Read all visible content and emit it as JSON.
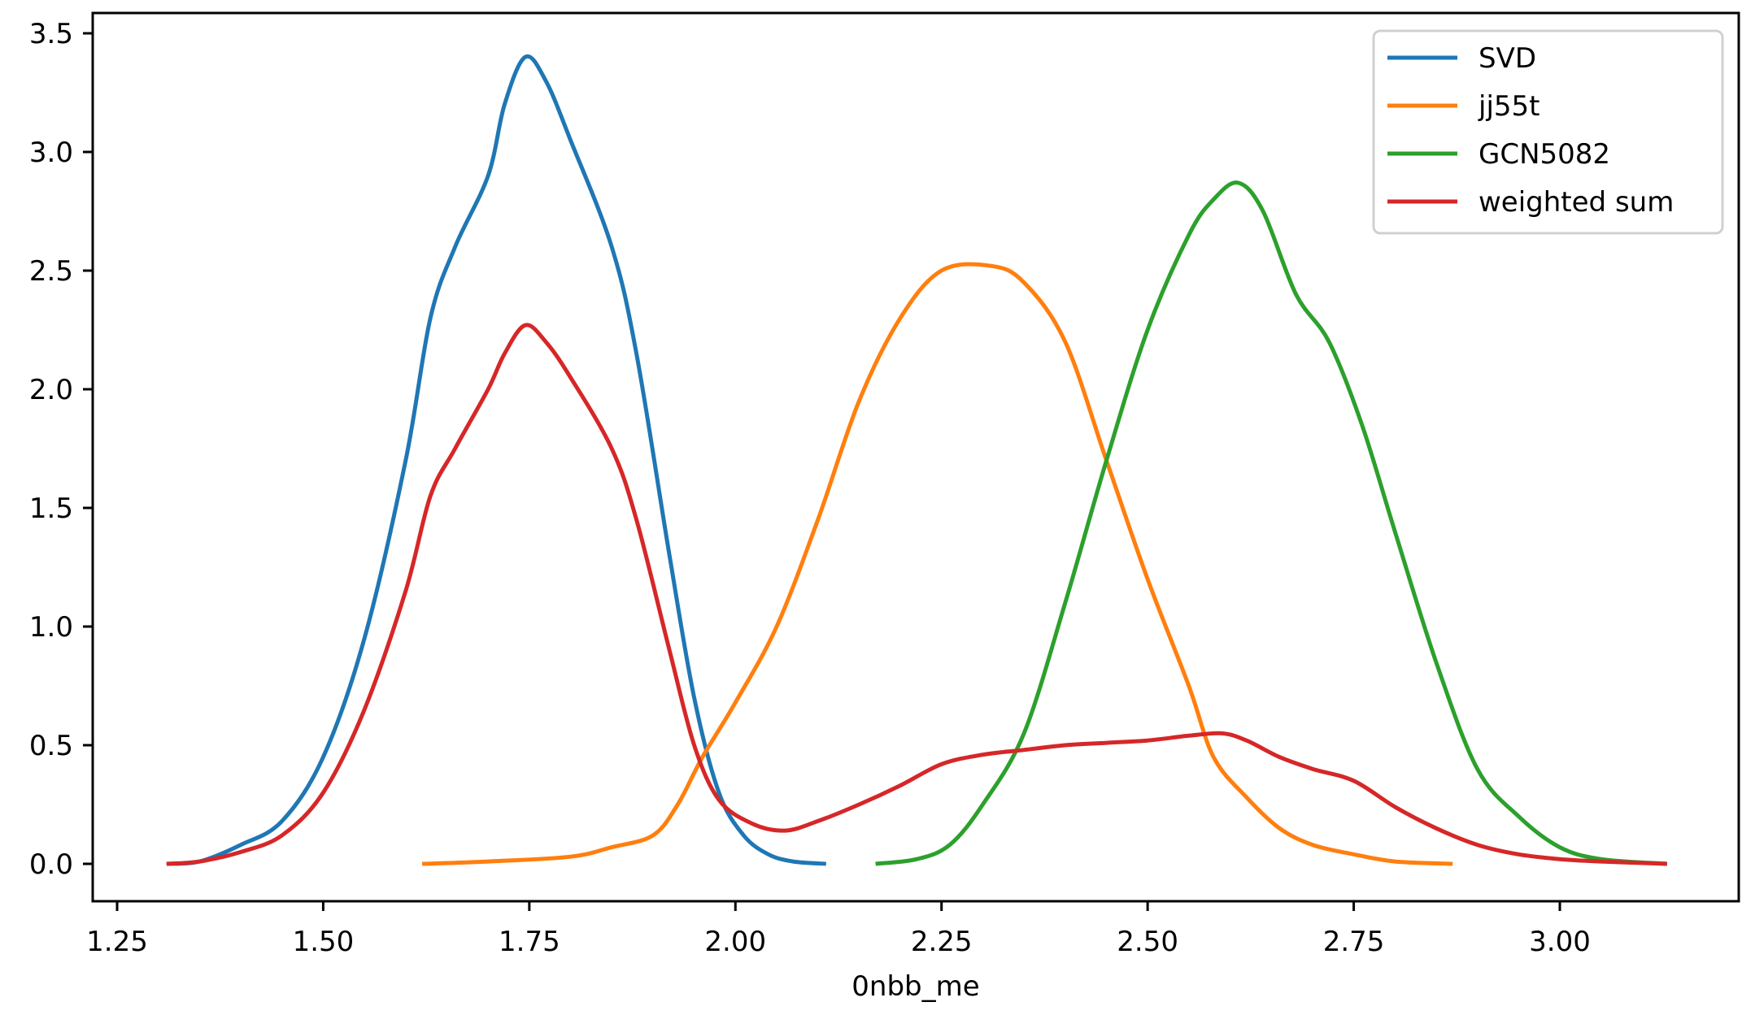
{
  "chart_data": {
    "type": "line",
    "title": "",
    "xlabel": "0nbb_me",
    "ylabel": "",
    "xlim": [
      1.22,
      3.22
    ],
    "ylim": [
      -0.17,
      3.6
    ],
    "xticks": [
      "1.25",
      "1.50",
      "1.75",
      "2.00",
      "2.25",
      "2.50",
      "2.75",
      "3.00"
    ],
    "yticks": [
      "0.0",
      "0.5",
      "1.0",
      "1.5",
      "2.0",
      "2.5",
      "3.0",
      "3.5"
    ],
    "grid": false,
    "legend_position": "upper right",
    "series": [
      {
        "name": "SVD",
        "color": "#1f77b4",
        "x": [
          1.31,
          1.35,
          1.4,
          1.45,
          1.5,
          1.55,
          1.6,
          1.63,
          1.66,
          1.7,
          1.72,
          1.745,
          1.77,
          1.8,
          1.85,
          1.88,
          1.92,
          1.95,
          1.98,
          2.01,
          2.04,
          2.07,
          2.11
        ],
        "y": [
          0.0,
          0.01,
          0.08,
          0.18,
          0.45,
          0.95,
          1.7,
          2.3,
          2.6,
          2.9,
          3.2,
          3.4,
          3.3,
          3.05,
          2.6,
          2.15,
          1.3,
          0.7,
          0.3,
          0.12,
          0.04,
          0.01,
          0.0
        ]
      },
      {
        "name": "jj55t",
        "color": "#ff7f0e",
        "x": [
          1.62,
          1.7,
          1.8,
          1.85,
          1.9,
          1.93,
          1.96,
          2.0,
          2.05,
          2.1,
          2.15,
          2.2,
          2.25,
          2.31,
          2.35,
          2.4,
          2.45,
          2.5,
          2.55,
          2.58,
          2.62,
          2.66,
          2.7,
          2.75,
          2.8,
          2.87
        ],
        "y": [
          0.0,
          0.01,
          0.03,
          0.07,
          0.12,
          0.25,
          0.45,
          0.68,
          1.0,
          1.45,
          1.95,
          2.3,
          2.5,
          2.52,
          2.45,
          2.2,
          1.7,
          1.2,
          0.75,
          0.45,
          0.28,
          0.15,
          0.08,
          0.04,
          0.01,
          0.0
        ]
      },
      {
        "name": "GCN5082",
        "color": "#2ca02c",
        "x": [
          2.17,
          2.22,
          2.26,
          2.3,
          2.35,
          2.4,
          2.45,
          2.5,
          2.55,
          2.58,
          2.61,
          2.64,
          2.68,
          2.72,
          2.76,
          2.8,
          2.85,
          2.9,
          2.95,
          3.0,
          3.05,
          3.13
        ],
        "y": [
          0.0,
          0.02,
          0.08,
          0.25,
          0.55,
          1.1,
          1.7,
          2.25,
          2.65,
          2.8,
          2.87,
          2.75,
          2.4,
          2.2,
          1.85,
          1.4,
          0.85,
          0.4,
          0.2,
          0.07,
          0.02,
          0.0
        ]
      },
      {
        "name": "weighted sum",
        "color": "#d62728",
        "x": [
          1.31,
          1.35,
          1.4,
          1.45,
          1.5,
          1.55,
          1.6,
          1.63,
          1.66,
          1.7,
          1.72,
          1.745,
          1.77,
          1.8,
          1.85,
          1.88,
          1.92,
          1.95,
          1.98,
          2.02,
          2.06,
          2.1,
          2.15,
          2.2,
          2.25,
          2.3,
          2.35,
          2.4,
          2.45,
          2.5,
          2.55,
          2.59,
          2.62,
          2.66,
          2.7,
          2.75,
          2.8,
          2.85,
          2.9,
          2.95,
          3.0,
          3.05,
          3.13
        ],
        "y": [
          0.0,
          0.01,
          0.05,
          0.12,
          0.3,
          0.65,
          1.15,
          1.55,
          1.75,
          2.0,
          2.15,
          2.27,
          2.2,
          2.05,
          1.75,
          1.45,
          0.9,
          0.5,
          0.27,
          0.17,
          0.14,
          0.18,
          0.25,
          0.33,
          0.42,
          0.46,
          0.48,
          0.5,
          0.51,
          0.52,
          0.54,
          0.55,
          0.52,
          0.45,
          0.4,
          0.35,
          0.24,
          0.15,
          0.08,
          0.04,
          0.02,
          0.01,
          0.0
        ]
      }
    ]
  },
  "legend": {
    "items": [
      {
        "label": "SVD",
        "color": "#1f77b4"
      },
      {
        "label": "jj55t",
        "color": "#ff7f0e"
      },
      {
        "label": "GCN5082",
        "color": "#2ca02c"
      },
      {
        "label": "weighted sum",
        "color": "#d62728"
      }
    ]
  }
}
